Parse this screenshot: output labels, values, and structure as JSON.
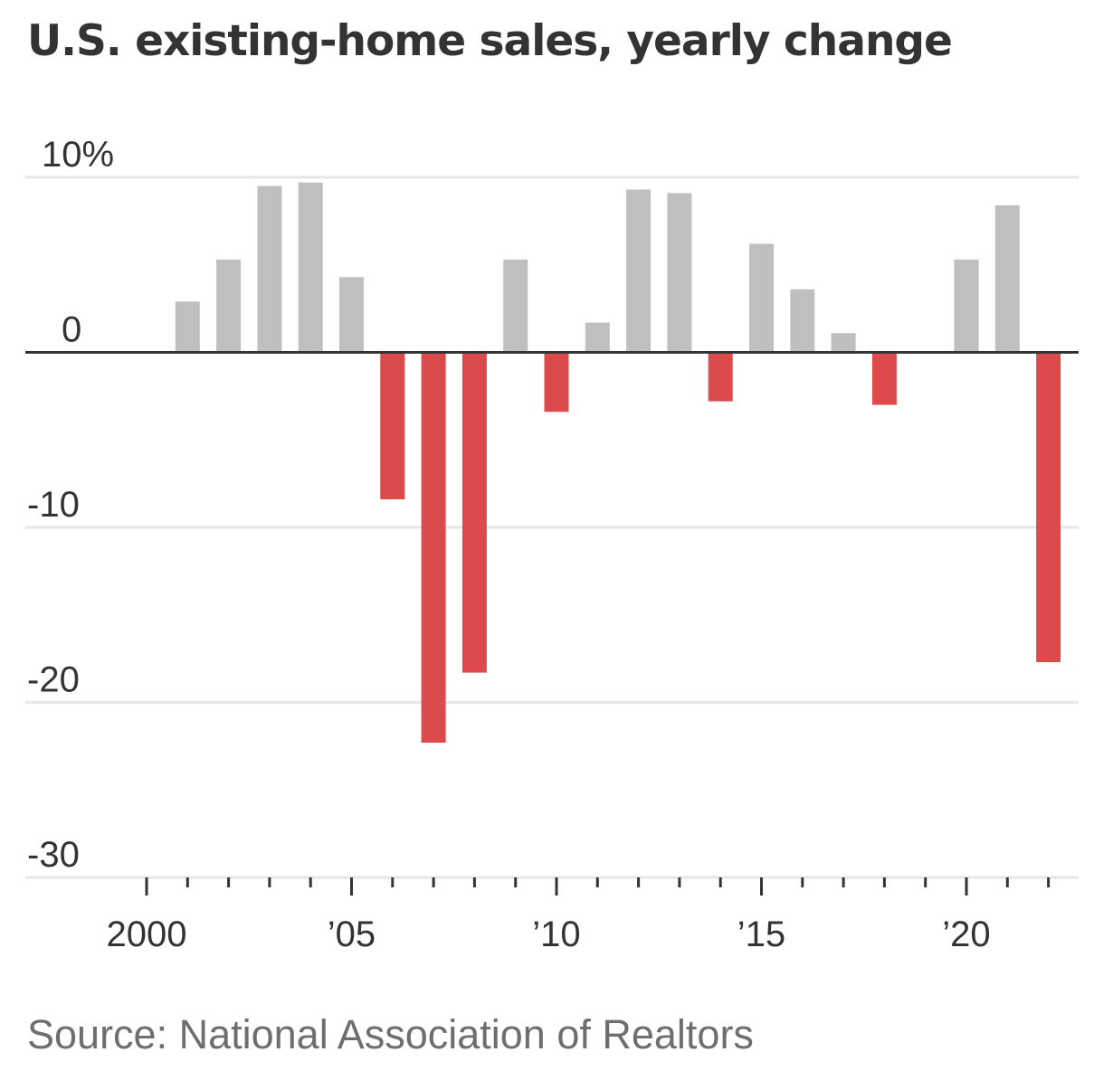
{
  "chart_data": {
    "type": "bar",
    "title": "U.S. existing-home sales, yearly change",
    "source": "Source: National Association of Realtors",
    "xlabel": "",
    "ylabel": "",
    "ylim": [
      -30,
      10
    ],
    "yticks": [
      {
        "value": 10,
        "label": "10%"
      },
      {
        "value": 0,
        "label": "0"
      },
      {
        "value": -10,
        "label": "-10"
      },
      {
        "value": -20,
        "label": "-20"
      },
      {
        "value": -30,
        "label": "-30"
      }
    ],
    "xlim": [
      2000,
      2022
    ],
    "xticks": [
      {
        "value": 2000,
        "label": "2000"
      },
      {
        "value": 2005,
        "label": "’05"
      },
      {
        "value": 2010,
        "label": "’10"
      },
      {
        "value": 2015,
        "label": "’15"
      },
      {
        "value": 2020,
        "label": "’20"
      }
    ],
    "grid": true,
    "colors": {
      "positive": "#bfbfbf",
      "negative": "#dc4a4c",
      "zero_line": "#333333",
      "grid": "#e6e6e6",
      "axis_text": "#333333",
      "title": "#333333",
      "source": "#6e6e6e"
    },
    "categories": [
      2001,
      2002,
      2003,
      2004,
      2005,
      2006,
      2007,
      2008,
      2009,
      2010,
      2011,
      2012,
      2013,
      2014,
      2015,
      2016,
      2017,
      2018,
      2019,
      2020,
      2021,
      2022
    ],
    "values": [
      2.9,
      5.3,
      9.5,
      9.7,
      4.3,
      -8.4,
      -22.3,
      -18.3,
      5.3,
      -3.4,
      1.7,
      9.3,
      9.1,
      -2.8,
      6.2,
      3.6,
      1.1,
      -3.0,
      0.0,
      5.3,
      8.4,
      -17.7
    ]
  }
}
